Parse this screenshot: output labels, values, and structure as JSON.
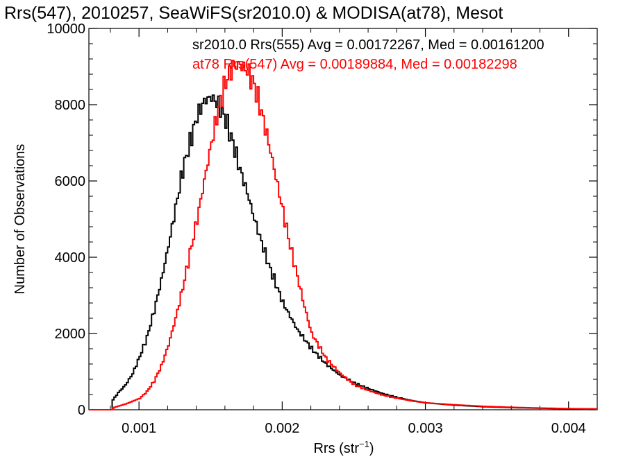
{
  "chart_data": {
    "type": "line",
    "title": "Rrs(547), 2010257, SeaWiFS(sr2010.0) & MODISA(at78), Mesot",
    "xlabel": "Rrs (str",
    "xlabel_sup": "−1",
    "xlabel_close": ")",
    "ylabel": "Number of Observations",
    "xlim": [
      0.00065,
      0.0042
    ],
    "ylim": [
      0,
      10000
    ],
    "xticks": [
      0.001,
      0.002,
      0.003,
      0.004
    ],
    "xtick_labels": [
      "0.001",
      "0.002",
      "0.003",
      "0.004"
    ],
    "yticks": [
      0,
      2000,
      4000,
      6000,
      8000,
      10000
    ],
    "ytick_labels": [
      "0",
      "2000",
      "4000",
      "6000",
      "8000",
      "10000"
    ],
    "grid": false,
    "legend": "top-right",
    "series": [
      {
        "name": "sr2010.0",
        "annotation": "sr2010.0 Rrs(555) Avg = 0.00172267, Med = 0.00161200",
        "color": "#000000",
        "x": [
          0.00065,
          0.0008,
          0.00081,
          0.00085,
          0.0009,
          0.00095,
          0.001,
          0.00105,
          0.0011,
          0.00115,
          0.0012,
          0.00125,
          0.0013,
          0.00135,
          0.0014,
          0.00145,
          0.0015,
          0.00155,
          0.0016,
          0.00165,
          0.0017,
          0.00175,
          0.0018,
          0.00185,
          0.0019,
          0.00195,
          0.002,
          0.0021,
          0.0022,
          0.0023,
          0.0024,
          0.0025,
          0.0026,
          0.0027,
          0.0028,
          0.0029,
          0.003,
          0.0032,
          0.0034,
          0.0036,
          0.0038,
          0.004,
          0.0042
        ],
        "y": [
          0,
          0,
          250,
          450,
          650,
          950,
          1400,
          1900,
          2600,
          3400,
          4300,
          5300,
          6300,
          7000,
          7700,
          8100,
          8200,
          8000,
          7600,
          7000,
          6300,
          5700,
          5000,
          4400,
          3800,
          3300,
          2800,
          2100,
          1600,
          1200,
          900,
          700,
          550,
          420,
          320,
          240,
          180,
          120,
          80,
          55,
          40,
          25,
          20
        ]
      },
      {
        "name": "at78",
        "annotation": "at78 Rrs(547) Avg = 0.00189884, Med = 0.00182298",
        "color": "#ff0000",
        "x": [
          0.00065,
          0.0008,
          0.00082,
          0.0009,
          0.001,
          0.00105,
          0.0011,
          0.00115,
          0.0012,
          0.00125,
          0.0013,
          0.00135,
          0.0014,
          0.00145,
          0.0015,
          0.00155,
          0.0016,
          0.00165,
          0.0017,
          0.00175,
          0.0018,
          0.00185,
          0.0019,
          0.00195,
          0.002,
          0.00205,
          0.0021,
          0.00215,
          0.0022,
          0.0023,
          0.0024,
          0.0025,
          0.0026,
          0.0027,
          0.0028,
          0.0029,
          0.003,
          0.0032,
          0.0034,
          0.0036,
          0.0038,
          0.004,
          0.0042
        ],
        "y": [
          0,
          0,
          60,
          150,
          300,
          480,
          750,
          1150,
          1700,
          2400,
          3200,
          4100,
          5000,
          6000,
          7000,
          7900,
          8600,
          9000,
          9050,
          8900,
          8500,
          7800,
          7000,
          6100,
          5200,
          4300,
          3500,
          2700,
          2000,
          1350,
          950,
          650,
          500,
          380,
          300,
          230,
          180,
          130,
          90,
          65,
          45,
          30,
          20
        ]
      }
    ]
  }
}
